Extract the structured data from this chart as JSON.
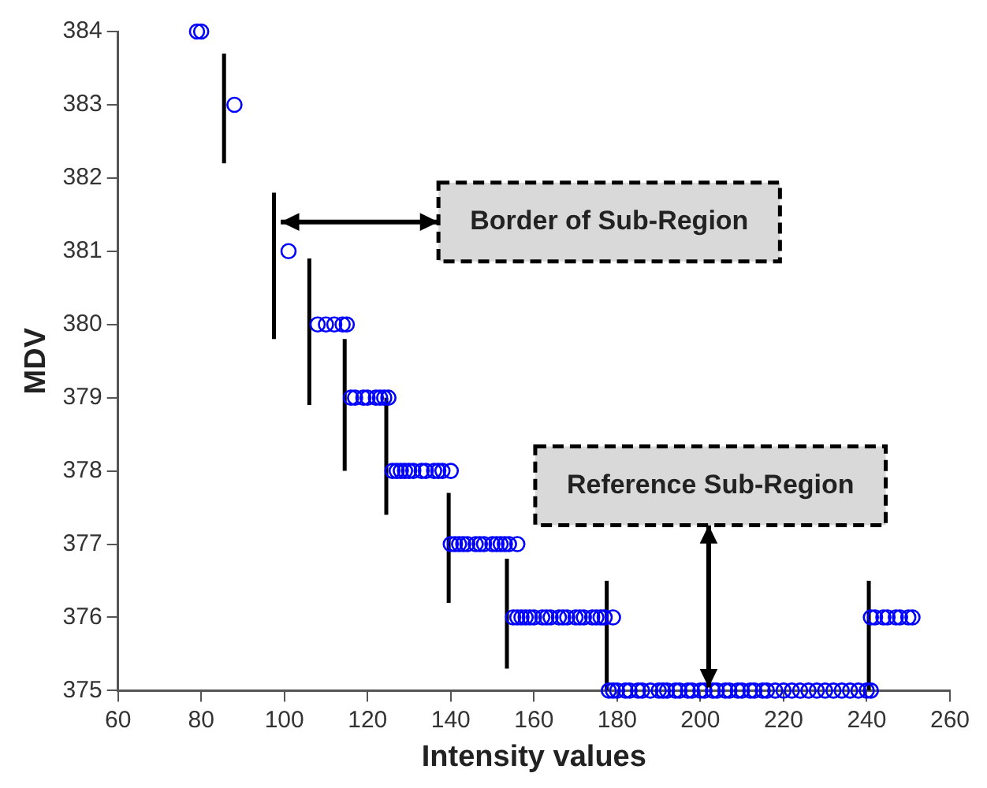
{
  "chart_data": {
    "type": "scatter",
    "xlabel": "Intensity values",
    "ylabel": "MDV",
    "xlim": [
      60,
      260
    ],
    "xticks": [
      60,
      80,
      100,
      120,
      140,
      160,
      180,
      200,
      220,
      240,
      260
    ],
    "ylim": [
      375,
      384
    ],
    "yticks": [
      375,
      376,
      377,
      378,
      379,
      380,
      381,
      382,
      383,
      384
    ],
    "grid": false,
    "legend": false,
    "marker": "circle",
    "series": [
      {
        "color": "#0000ff",
        "x": [
          79,
          80,
          88,
          101,
          108,
          110,
          112,
          114,
          115,
          116,
          117,
          119,
          120,
          122,
          123,
          124,
          125,
          126,
          127,
          128,
          129,
          130,
          131,
          133,
          134,
          136,
          137,
          138,
          140,
          140,
          141,
          142,
          143,
          144,
          146,
          147,
          148,
          150,
          151,
          152,
          153,
          154,
          156,
          155,
          156,
          157,
          158,
          159,
          160,
          162,
          163,
          164,
          166,
          167,
          168,
          170,
          171,
          172,
          174,
          175,
          176,
          177,
          179,
          178,
          179,
          180,
          182,
          183,
          185,
          186,
          188,
          190,
          191,
          192,
          194,
          195,
          197,
          198,
          200,
          201,
          203,
          204,
          206,
          207,
          209,
          210,
          212,
          213,
          215,
          216,
          218,
          220,
          222,
          224,
          226,
          228,
          230,
          232,
          234,
          236,
          238,
          240,
          241,
          241,
          242,
          244,
          245,
          247,
          248,
          250,
          251
        ],
        "values": [
          384,
          384,
          383,
          381,
          380,
          380,
          380,
          380,
          380,
          379,
          379,
          379,
          379,
          379,
          379,
          379,
          379,
          378,
          378,
          378,
          378,
          378,
          378,
          378,
          378,
          378,
          378,
          378,
          378,
          377,
          377,
          377,
          377,
          377,
          377,
          377,
          377,
          377,
          377,
          377,
          377,
          377,
          377,
          376,
          376,
          376,
          376,
          376,
          376,
          376,
          376,
          376,
          376,
          376,
          376,
          376,
          376,
          376,
          376,
          376,
          376,
          376,
          376,
          375,
          375,
          375,
          375,
          375,
          375,
          375,
          375,
          375,
          375,
          375,
          375,
          375,
          375,
          375,
          375,
          375,
          375,
          375,
          375,
          375,
          375,
          375,
          375,
          375,
          375,
          375,
          375,
          375,
          375,
          375,
          375,
          375,
          375,
          375,
          375,
          375,
          375,
          375,
          375,
          376,
          376,
          376,
          376,
          376,
          376,
          376,
          376
        ]
      },
      {
        "type": "line",
        "color": "#000000",
        "marker": "none",
        "x": [
          85.5,
          85.5
        ],
        "values": [
          382.2,
          383.7
        ]
      },
      {
        "type": "line",
        "color": "#000000",
        "marker": "none",
        "x": [
          97.5,
          97.5
        ],
        "values": [
          379.8,
          381.8
        ]
      },
      {
        "type": "line",
        "color": "#000000",
        "marker": "none",
        "x": [
          106,
          106
        ],
        "values": [
          378.9,
          380.9
        ]
      },
      {
        "type": "line",
        "color": "#000000",
        "marker": "none",
        "x": [
          114.5,
          114.5
        ],
        "values": [
          378,
          379.8
        ]
      },
      {
        "type": "line",
        "color": "#000000",
        "marker": "none",
        "x": [
          124.5,
          124.5
        ],
        "values": [
          377.4,
          379
        ]
      },
      {
        "type": "line",
        "color": "#000000",
        "marker": "none",
        "x": [
          139.5,
          139.5
        ],
        "values": [
          376.2,
          377.7
        ]
      },
      {
        "type": "line",
        "color": "#000000",
        "marker": "none",
        "x": [
          153.5,
          153.5
        ],
        "values": [
          375.3,
          376.8
        ]
      },
      {
        "type": "line",
        "color": "#000000",
        "marker": "none",
        "x": [
          177.5,
          177.5
        ],
        "values": [
          375,
          376.5
        ]
      },
      {
        "type": "line",
        "color": "#000000",
        "marker": "none",
        "x": [
          240.5,
          240.5
        ],
        "values": [
          375,
          376.5
        ]
      }
    ],
    "annotations": [
      {
        "text": "Border of Sub-Region",
        "x": 98,
        "y": 381.4
      },
      {
        "text": "Reference Sub-Region",
        "x": 202,
        "y": 375
      }
    ]
  }
}
